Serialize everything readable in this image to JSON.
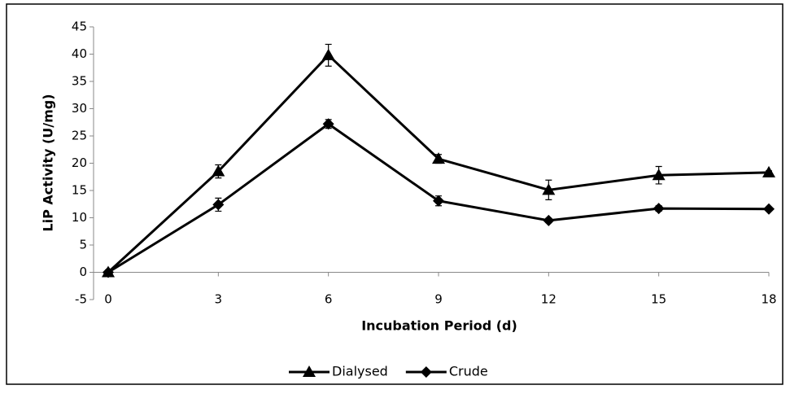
{
  "chart_data": {
    "type": "line",
    "x_label": "Incubation Period (d)",
    "y_label": "LiP Activity (U/mg)",
    "x": [
      0,
      3,
      6,
      9,
      12,
      15,
      18
    ],
    "series": [
      {
        "name": "Dialysed",
        "color": "#000000",
        "marker": "triangle",
        "values": [
          0,
          18.5,
          39.8,
          20.8,
          15.1,
          17.8,
          18.3
        ],
        "errors": [
          0.4,
          1.2,
          2.0,
          0.8,
          1.8,
          1.6,
          0.3
        ]
      },
      {
        "name": "Crude",
        "color": "#000000",
        "marker": "diamond",
        "values": [
          0,
          12.4,
          27.2,
          13.1,
          9.5,
          11.7,
          11.6
        ],
        "errors": [
          0.4,
          1.2,
          0.8,
          0.9,
          0.4,
          0.5,
          0.3
        ]
      }
    ],
    "xlim": [
      0,
      18
    ],
    "xticks": [
      0,
      3,
      6,
      9,
      12,
      15,
      18
    ],
    "ylim": [
      -5,
      45
    ],
    "yticks": [
      -5,
      0,
      5,
      10,
      15,
      20,
      25,
      30,
      35,
      40,
      45
    ],
    "legend": "bottom"
  }
}
